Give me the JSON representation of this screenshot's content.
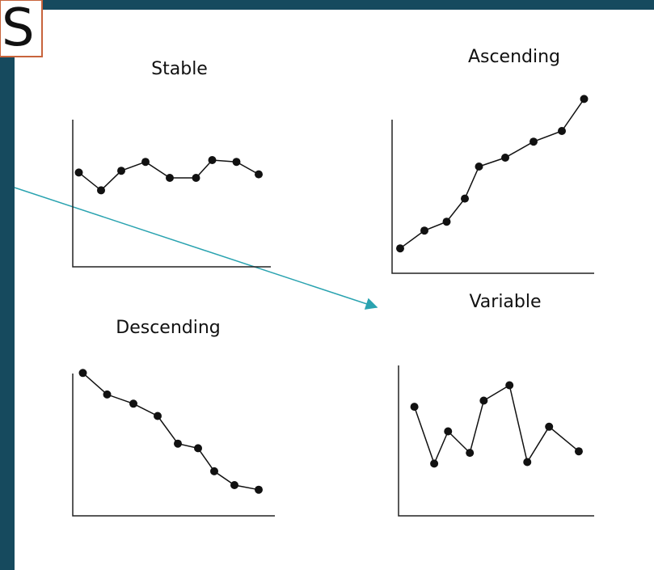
{
  "header": {
    "title_fragment": "S"
  },
  "chart_data": [
    {
      "type": "line",
      "title": "Stable",
      "x": [
        3,
        14,
        24,
        36,
        48,
        61,
        69,
        81,
        92
      ],
      "values": [
        53,
        43,
        54,
        59,
        50,
        50,
        60,
        59,
        52
      ],
      "xlim": [
        0,
        100
      ],
      "ylim": [
        0,
        100
      ],
      "color": "#111111"
    },
    {
      "type": "line",
      "title": "Ascending",
      "x": [
        4,
        16,
        27,
        36,
        43,
        56,
        70,
        84,
        95
      ],
      "values": [
        14,
        24,
        29,
        42,
        60,
        65,
        74,
        80,
        98
      ],
      "xlim": [
        0,
        100
      ],
      "ylim": [
        0,
        100
      ],
      "color": "#111111"
    },
    {
      "type": "line",
      "title": "Descending",
      "x": [
        5,
        17,
        30,
        42,
        52,
        62,
        70,
        80,
        92
      ],
      "values": [
        93,
        79,
        73,
        65,
        47,
        44,
        29,
        20,
        17
      ],
      "xlim": [
        0,
        100
      ],
      "ylim": [
        0,
        100
      ],
      "color": "#111111"
    },
    {
      "type": "line",
      "title": "Variable",
      "x": [
        8,
        18,
        25,
        36,
        43,
        56,
        65,
        76,
        91
      ],
      "values": [
        71,
        34,
        55,
        41,
        75,
        85,
        35,
        58,
        42
      ],
      "xlim": [
        0,
        100
      ],
      "ylim": [
        0,
        100
      ],
      "color": "#111111"
    }
  ]
}
